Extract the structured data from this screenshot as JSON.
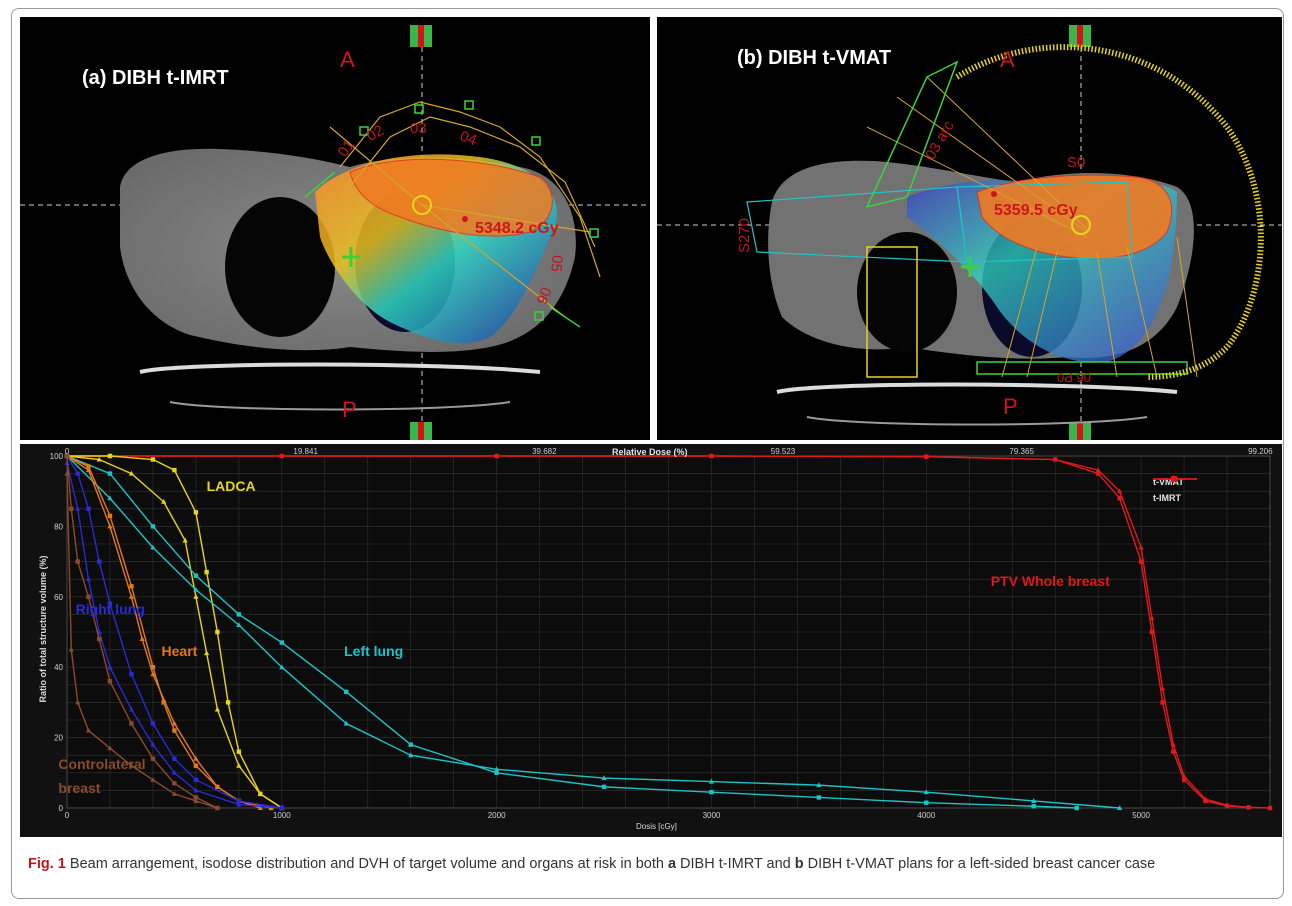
{
  "panel_a": {
    "title": "(a) DIBH t-IMRT",
    "orient_top": "A",
    "orient_bottom": "P",
    "max_dose": "5348.2 cGy",
    "beam_labels": [
      "01",
      "02",
      "03",
      "04",
      "05",
      "06"
    ]
  },
  "panel_b": {
    "title": "(b) DIBH t-VMAT",
    "orient_top": "A",
    "orient_bottom": "P",
    "max_dose": "5359.5 cGy",
    "beam_labels": [
      "03 arc",
      "S0",
      "S270",
      "06 P0"
    ]
  },
  "chart_data": {
    "type": "line",
    "title": "Relative Dose (%)",
    "xlabel": "Dosis [cGy]",
    "ylabel": "Ratio of total structure volume (%)",
    "xlim": [
      0,
      5600
    ],
    "ylim": [
      0,
      100
    ],
    "x_ticks": [
      0,
      1000,
      2000,
      3000,
      4000,
      5000
    ],
    "y_ticks": [
      0,
      20,
      40,
      60,
      80,
      100
    ],
    "top_ticks": [
      "0",
      "19.841",
      "39.682",
      "59.523",
      "79.365",
      "99.206"
    ],
    "top_tick_doses": [
      0,
      1111,
      2222,
      3333,
      4444,
      5555
    ],
    "grid": true,
    "legend_position": "top-right",
    "legend": [
      {
        "name": "t-VMAT",
        "marker": "square",
        "color": "#e0191b"
      },
      {
        "name": "t-IMRT",
        "marker": "triangle",
        "color": "#e0191b"
      }
    ],
    "structure_labels": [
      {
        "text": "LADCA",
        "color": "#e8d41a",
        "x": 650,
        "y": 91
      },
      {
        "text": "Right lung",
        "color": "#2a2ad6",
        "x": 40,
        "y": 56
      },
      {
        "text": "Heart",
        "color": "#e3781d",
        "x": 440,
        "y": 44
      },
      {
        "text": "Left lung",
        "color": "#1ec3c8",
        "x": 1290,
        "y": 44
      },
      {
        "text": "PTV Whole breast",
        "color": "#e0191b",
        "x": 4300,
        "y": 64
      },
      {
        "text": "Controlateral",
        "color": "#8b4a2b",
        "x": -40,
        "y": 12
      },
      {
        "text": "breast",
        "color": "#8b4a2b",
        "x": -40,
        "y": 5
      }
    ],
    "series": [
      {
        "name": "PTV Whole breast",
        "plan": "t-VMAT",
        "color": "#e0191b",
        "marker": "square",
        "x": [
          0,
          200,
          1000,
          2000,
          3000,
          4000,
          4600,
          4800,
          4900,
          5000,
          5050,
          5100,
          5150,
          5200,
          5300,
          5400,
          5500,
          5600
        ],
        "y": [
          100,
          100,
          100,
          100,
          100,
          99.8,
          99,
          95,
          88,
          70,
          50,
          30,
          16,
          8,
          2,
          0.6,
          0.2,
          0
        ]
      },
      {
        "name": "PTV Whole breast",
        "plan": "t-IMRT",
        "color": "#e0191b",
        "marker": "triangle",
        "x": [
          0,
          200,
          1000,
          2000,
          3000,
          4000,
          4600,
          4800,
          4900,
          5000,
          5050,
          5100,
          5150,
          5200,
          5300,
          5400,
          5500,
          5600
        ],
        "y": [
          100,
          100,
          100,
          100,
          100,
          99.8,
          99,
          96,
          90,
          74,
          54,
          34,
          18,
          9,
          2.5,
          0.8,
          0.2,
          0
        ]
      },
      {
        "name": "LADCA",
        "plan": "t-VMAT",
        "color": "#e8d41a",
        "marker": "square",
        "x": [
          0,
          200,
          400,
          500,
          600,
          650,
          700,
          750,
          800,
          900,
          1000
        ],
        "y": [
          100,
          100,
          99,
          96,
          84,
          67,
          50,
          30,
          16,
          4,
          0
        ]
      },
      {
        "name": "LADCA",
        "plan": "t-IMRT",
        "color": "#e8d41a",
        "marker": "triangle",
        "x": [
          0,
          150,
          300,
          450,
          550,
          600,
          650,
          700,
          800,
          900,
          1000
        ],
        "y": [
          100,
          99,
          95,
          87,
          76,
          60,
          44,
          28,
          12,
          4,
          0
        ]
      },
      {
        "name": "Left lung",
        "plan": "t-VMAT",
        "color": "#1ec3c8",
        "marker": "square",
        "x": [
          0,
          200,
          400,
          600,
          800,
          1000,
          1300,
          1600,
          2000,
          2500,
          3000,
          3500,
          4000,
          4500,
          4700
        ],
        "y": [
          100,
          95,
          80,
          66,
          55,
          47,
          33,
          18,
          10,
          6,
          4.5,
          3,
          1.5,
          0.5,
          0
        ]
      },
      {
        "name": "Left lung",
        "plan": "t-IMRT",
        "color": "#1ec3c8",
        "marker": "triangle",
        "x": [
          0,
          200,
          400,
          600,
          800,
          1000,
          1300,
          1600,
          2000,
          2500,
          3000,
          3500,
          4000,
          4500,
          4900
        ],
        "y": [
          100,
          88,
          74,
          62,
          52,
          40,
          24,
          15,
          11,
          8.5,
          7.5,
          6.5,
          4.5,
          2,
          0
        ]
      },
      {
        "name": "Heart",
        "plan": "t-VMAT",
        "color": "#e3781d",
        "marker": "square",
        "x": [
          0,
          100,
          200,
          300,
          400,
          450,
          500,
          600,
          700,
          800,
          950
        ],
        "y": [
          100,
          97,
          83,
          63,
          40,
          30,
          22,
          12,
          6,
          2,
          0
        ]
      },
      {
        "name": "Heart",
        "plan": "t-IMRT",
        "color": "#e3781d",
        "marker": "triangle",
        "x": [
          0,
          100,
          200,
          300,
          350,
          400,
          500,
          600,
          700,
          800,
          900
        ],
        "y": [
          100,
          96,
          80,
          60,
          48,
          38,
          24,
          14,
          6,
          2,
          0
        ]
      },
      {
        "name": "Right lung",
        "plan": "t-VMAT",
        "color": "#2a2ad6",
        "marker": "square",
        "x": [
          0,
          50,
          100,
          150,
          200,
          300,
          400,
          500,
          600,
          800,
          1000
        ],
        "y": [
          100,
          95,
          85,
          70,
          58,
          38,
          24,
          14,
          8,
          2,
          0
        ]
      },
      {
        "name": "Right lung",
        "plan": "t-IMRT",
        "color": "#2a2ad6",
        "marker": "triangle",
        "x": [
          0,
          50,
          100,
          150,
          200,
          300,
          400,
          500,
          600,
          800,
          1000
        ],
        "y": [
          98,
          85,
          65,
          50,
          40,
          28,
          18,
          10,
          5,
          1,
          0
        ]
      },
      {
        "name": "Controlateral breast",
        "plan": "t-VMAT",
        "color": "#8b4a2b",
        "marker": "square",
        "x": [
          0,
          20,
          50,
          100,
          150,
          200,
          300,
          400,
          500,
          600,
          700
        ],
        "y": [
          100,
          85,
          70,
          60,
          48,
          36,
          24,
          14,
          7,
          3,
          0
        ]
      },
      {
        "name": "Controlateral breast",
        "plan": "t-IMRT",
        "color": "#8b4a2b",
        "marker": "triangle",
        "x": [
          0,
          20,
          50,
          100,
          200,
          300,
          400,
          500,
          600,
          700
        ],
        "y": [
          95,
          45,
          30,
          22,
          17,
          12,
          8,
          4,
          2,
          0
        ]
      }
    ]
  },
  "caption": {
    "label": "Fig. 1",
    "part1": " Beam arrangement, isodose distribution and DVH of target volume and organs at risk in both ",
    "a": "a",
    "part2": " DIBH t-IMRT and ",
    "b": "b",
    "part3": " DIBH t-VMAT plans for a left-sided breast cancer case"
  }
}
